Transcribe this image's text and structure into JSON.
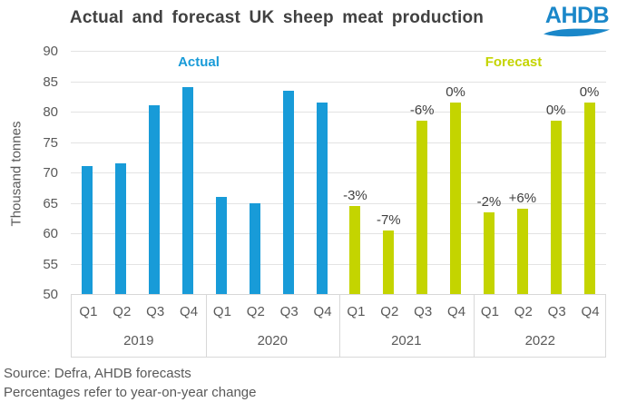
{
  "title": "Actual and forecast UK sheep meat production",
  "logo": {
    "text": "AHDB",
    "color": "#1a87c9"
  },
  "legend": {
    "actual_label": "Actual",
    "forecast_label": "Forecast"
  },
  "footer": {
    "source": "Source: Defra, AHDB forecasts",
    "note": "Percentages refer to year-on-year change"
  },
  "chart_data": {
    "type": "bar",
    "title": "Actual and forecast UK sheep meat production",
    "xlabel": "",
    "ylabel": "Thousand tonnes",
    "ylim": [
      50,
      90
    ],
    "ytick_step": 5,
    "grid": true,
    "legend_position": "top-inside",
    "quarter_labels": [
      "Q1",
      "Q2",
      "Q3",
      "Q4"
    ],
    "groups": [
      {
        "year": "2019",
        "series": "actual",
        "values": [
          71,
          71.5,
          81,
          84
        ],
        "bar_labels": [
          "",
          "",
          "",
          ""
        ]
      },
      {
        "year": "2020",
        "series": "actual",
        "values": [
          66,
          65,
          83.5,
          81.5
        ],
        "bar_labels": [
          "",
          "",
          "",
          ""
        ]
      },
      {
        "year": "2021",
        "series": "forecast",
        "values": [
          64.5,
          60.5,
          78.5,
          81.5
        ],
        "bar_labels": [
          "-3%",
          "-7%",
          "-6%",
          "0%"
        ]
      },
      {
        "year": "2022",
        "series": "forecast",
        "values": [
          63.5,
          64,
          78.5,
          81.5
        ],
        "bar_labels": [
          "-2%",
          "+6%",
          "0%",
          "0%"
        ]
      }
    ],
    "colors": {
      "actual": "#189bd8",
      "forecast": "#c4d400"
    }
  }
}
